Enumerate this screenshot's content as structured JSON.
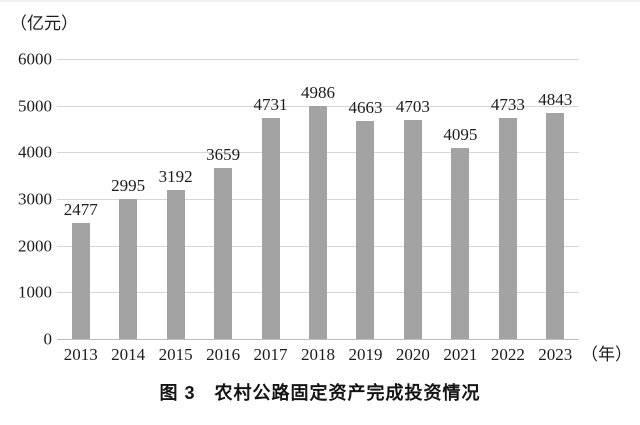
{
  "figure": {
    "caption": "图 3　农村公路固定资产完成投资情况",
    "y_axis_unit": "（亿元）",
    "x_axis_unit": "（年）"
  },
  "chart_data": {
    "type": "bar",
    "title": "图 3　农村公路固定资产完成投资情况",
    "ylabel": "（亿元）",
    "xlabel": "（年）",
    "categories": [
      "2013",
      "2014",
      "2015",
      "2016",
      "2017",
      "2018",
      "2019",
      "2020",
      "2021",
      "2022",
      "2023"
    ],
    "values": [
      2477,
      2995,
      3192,
      3659,
      4731,
      4986,
      4663,
      4703,
      4095,
      4733,
      4843
    ],
    "ylim": [
      0,
      6000
    ],
    "yticks": [
      0,
      1000,
      2000,
      3000,
      4000,
      5000,
      6000
    ],
    "grid": "horizontal",
    "legend": "none",
    "data_labels": true,
    "bar_color": "#a3a3a3",
    "gridline_color": "#d6d6d6",
    "baseline_color": "#bdbdbd",
    "text_color": "#1c1c1c"
  }
}
